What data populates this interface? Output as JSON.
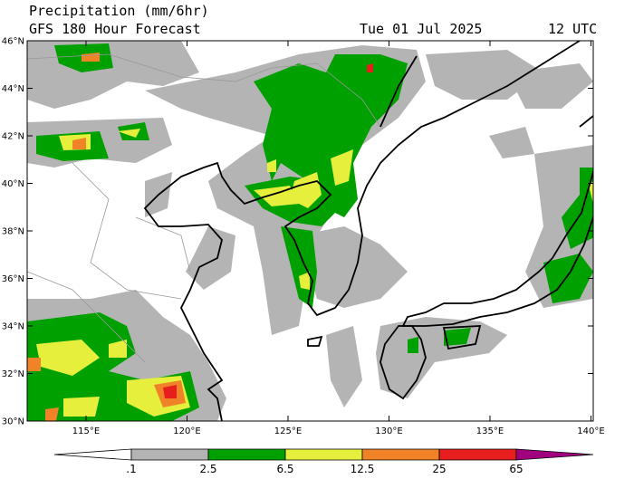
{
  "header": {
    "title": "Precipitation (mm/6hr)",
    "subtitle": "GFS 180 Hour Forecast",
    "valid_date": "Tue 01 Jul 2025",
    "valid_hour": "12 UTC"
  },
  "map": {
    "lat_labels": [
      "46°N",
      "44°N",
      "42°N",
      "40°N",
      "38°N",
      "36°N",
      "34°N",
      "32°N",
      "30°N"
    ],
    "lon_labels": [
      "115°E",
      "120°E",
      "125°E",
      "130°E",
      "135°E",
      "140°E"
    ]
  },
  "colorbar": {
    "levels": [
      ".1",
      "2.5",
      "6.5",
      "12.5",
      "25",
      "65"
    ],
    "colors": [
      "#ffffff",
      "#b4b4b4",
      "#00a000",
      "#e6f03c",
      "#f08228",
      "#e61e1e",
      "#a0007d"
    ]
  }
}
